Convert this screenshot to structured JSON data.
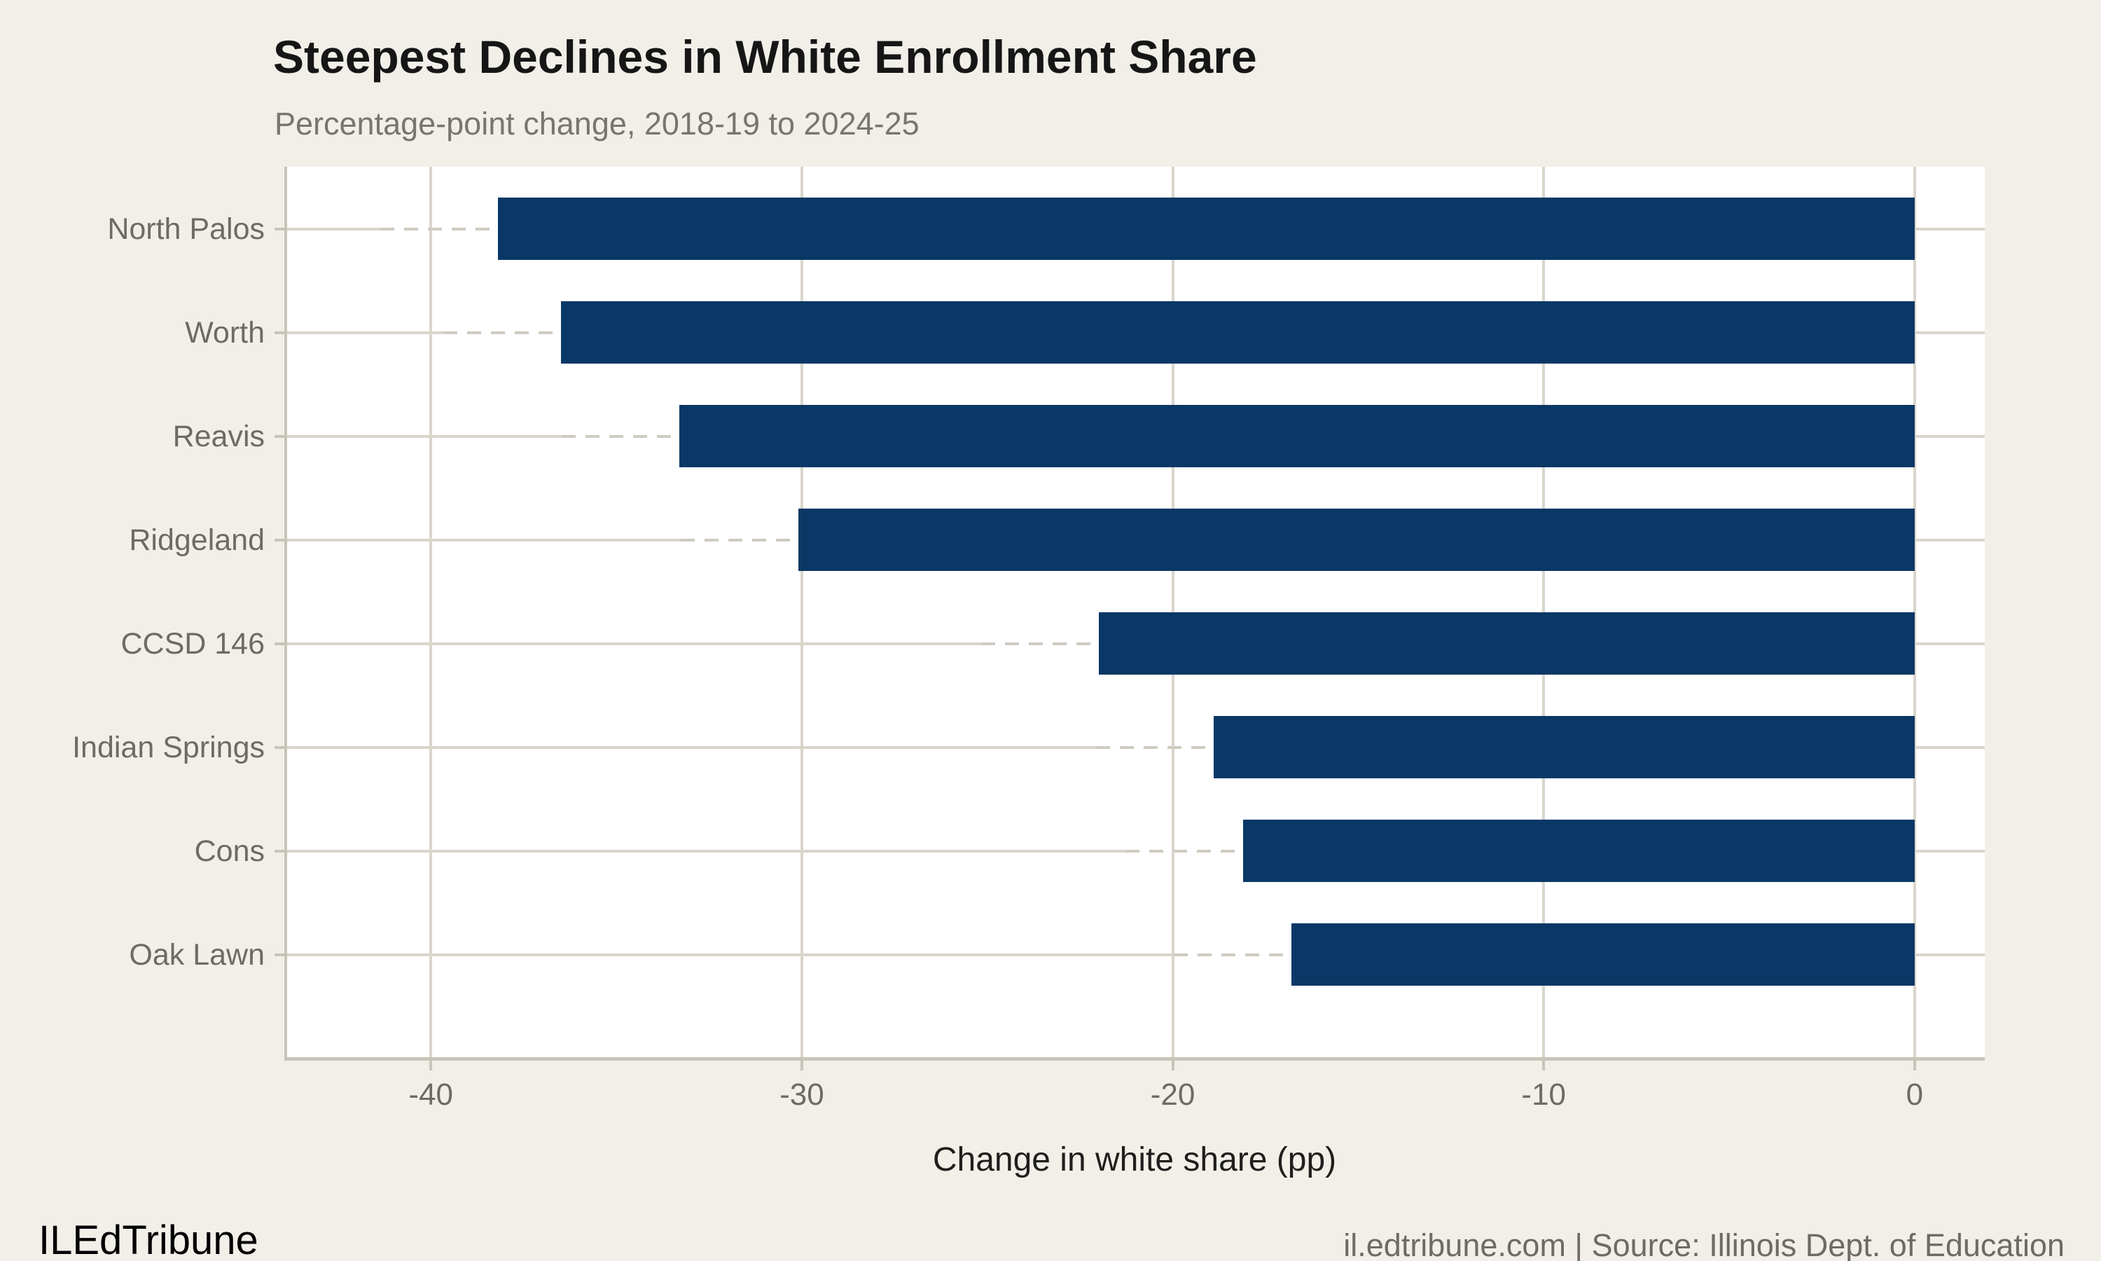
{
  "header": {
    "title": "Steepest Declines in White Enrollment Share",
    "subtitle": "Percentage-point change, 2018-19 to 2024-25"
  },
  "footer": {
    "brand": "ILEdTribune",
    "source": "il.edtribune.com | Source: Illinois Dept. of Education"
  },
  "colors": {
    "background": "#f2efe9",
    "panel": "#ffffff",
    "bar": "#0a3866",
    "gridline": "#d9d5cb",
    "axis_line": "#c8c4b9",
    "muted_text": "#6f6b63",
    "subtitle_text": "#7a756c",
    "title_text": "#161616"
  },
  "chart_data": {
    "type": "bar",
    "orientation": "horizontal",
    "title": "Steepest Declines in White Enrollment Share",
    "subtitle": "Percentage-point change, 2018-19 to 2024-25",
    "xlabel": "Change in white share (pp)",
    "ylabel": "",
    "categories": [
      "North Palos",
      "Worth",
      "Reavis",
      "Ridgeland",
      "CCSD 146",
      "Indian Springs",
      "Cons",
      "Oak Lawn"
    ],
    "values": [
      -38.2,
      -36.5,
      -33.3,
      -30.1,
      -22.0,
      -18.9,
      -18.1,
      -16.8
    ],
    "xlim": [
      -43.95,
      1.89
    ],
    "xticks": [
      -40,
      -30,
      -20,
      -10,
      0
    ],
    "xtick_labels": [
      "-40",
      "-30",
      "-20",
      "-10",
      "0"
    ],
    "baseline": 0,
    "grid": true,
    "legend": false
  }
}
